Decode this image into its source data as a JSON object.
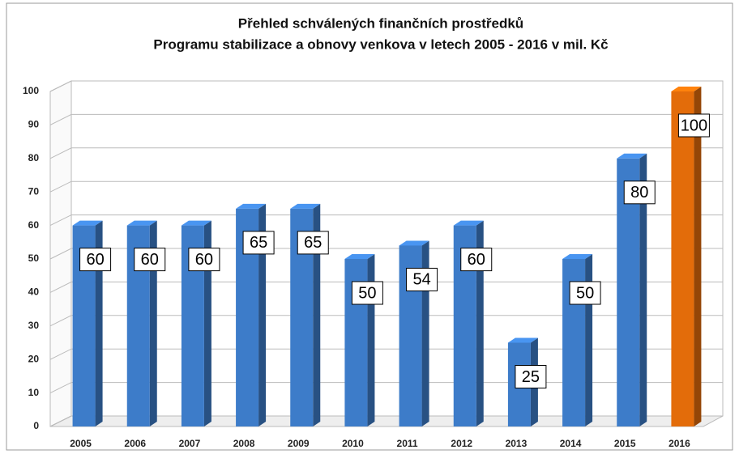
{
  "chart_data": {
    "type": "bar",
    "title": [
      "Přehled schválených finančních prostředků",
      "Programu stabilizace a obnovy venkova v letech 2005 - 2016 v mil. Kč"
    ],
    "categories": [
      "2005",
      "2006",
      "2007",
      "2008",
      "2009",
      "2010",
      "2011",
      "2012",
      "2013",
      "2014",
      "2015",
      "2016"
    ],
    "values": [
      60,
      60,
      60,
      65,
      65,
      50,
      54,
      60,
      25,
      50,
      80,
      100
    ],
    "colors": [
      "#3d7cc9",
      "#3d7cc9",
      "#3d7cc9",
      "#3d7cc9",
      "#3d7cc9",
      "#3d7cc9",
      "#3d7cc9",
      "#3d7cc9",
      "#3d7cc9",
      "#3d7cc9",
      "#3d7cc9",
      "#e36c0a"
    ],
    "ylim": [
      0,
      100
    ],
    "yticks": [
      0,
      10,
      20,
      30,
      40,
      50,
      60,
      70,
      80,
      90,
      100
    ],
    "grid": true
  }
}
